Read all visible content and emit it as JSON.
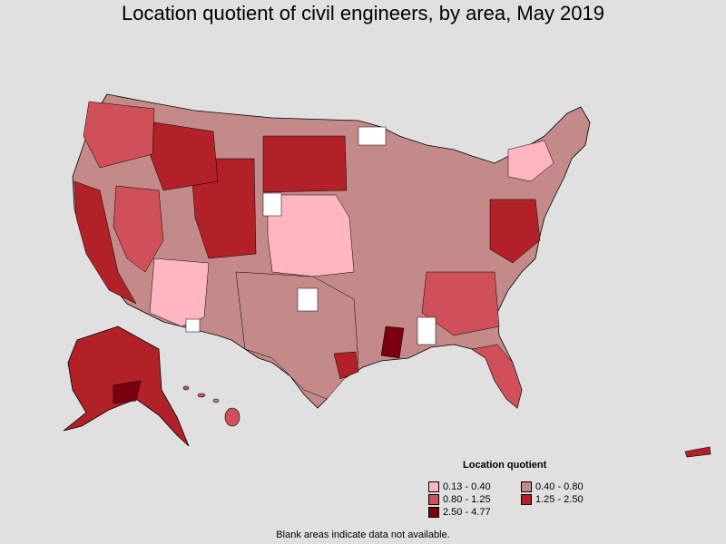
{
  "title": "Location quotient of civil engineers, by area, May 2019",
  "legend": {
    "title": "Location quotient",
    "items": [
      {
        "label": "0.13 - 0.40",
        "color": "#ffb6c1"
      },
      {
        "label": "0.40 - 0.80",
        "color": "#c48a8a"
      },
      {
        "label": "0.80 - 1.25",
        "color": "#d0505a"
      },
      {
        "label": "1.25 - 2.50",
        "color": "#b22028"
      },
      {
        "label": "2.50 - 4.77",
        "color": "#7a0010"
      }
    ]
  },
  "footnote": "Blank areas indicate data not available."
}
